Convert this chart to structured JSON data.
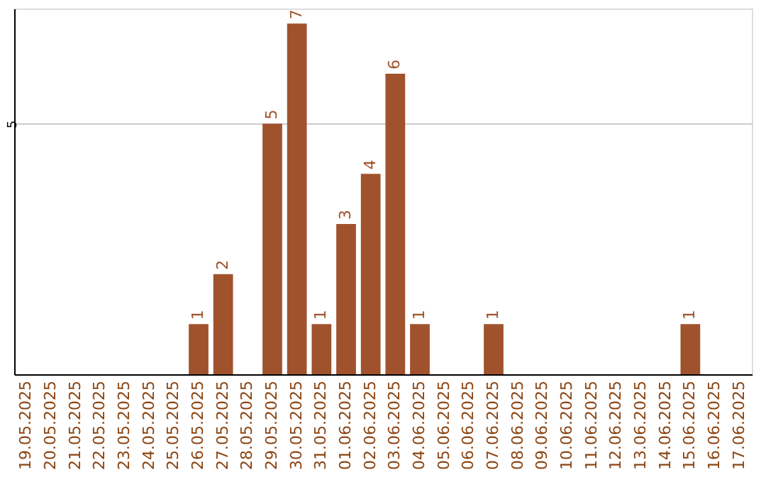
{
  "chart_data": {
    "type": "bar",
    "categories": [
      "19.05.2025",
      "20.05.2025",
      "21.05.2025",
      "22.05.2025",
      "23.05.2025",
      "24.05.2025",
      "25.05.2025",
      "26.05.2025",
      "27.05.2025",
      "28.05.2025",
      "29.05.2025",
      "30.05.2025",
      "31.05.2025",
      "01.06.2025",
      "02.06.2025",
      "03.06.2025",
      "04.06.2025",
      "05.06.2025",
      "06.06.2025",
      "07.06.2025",
      "08.06.2025",
      "09.06.2025",
      "10.06.2025",
      "11.06.2025",
      "12.06.2025",
      "13.06.2025",
      "14.06.2025",
      "15.06.2025",
      "16.06.2025",
      "17.06.2025"
    ],
    "values": [
      0,
      0,
      0,
      0,
      0,
      0,
      0,
      1,
      2,
      0,
      5,
      7,
      1,
      3,
      4,
      6,
      1,
      0,
      0,
      1,
      0,
      0,
      0,
      0,
      0,
      0,
      0,
      1,
      0,
      0
    ],
    "value_labels": [
      null,
      null,
      null,
      null,
      null,
      null,
      null,
      "1",
      "2",
      null,
      "5",
      "7",
      "1",
      "3",
      "4",
      "6",
      "1",
      null,
      null,
      "1",
      null,
      null,
      null,
      null,
      null,
      null,
      null,
      "1",
      null,
      null
    ],
    "color": "#a0522d",
    "ylim": [
      0,
      7.3
    ],
    "yticks": [
      5
    ],
    "grid": "y"
  }
}
